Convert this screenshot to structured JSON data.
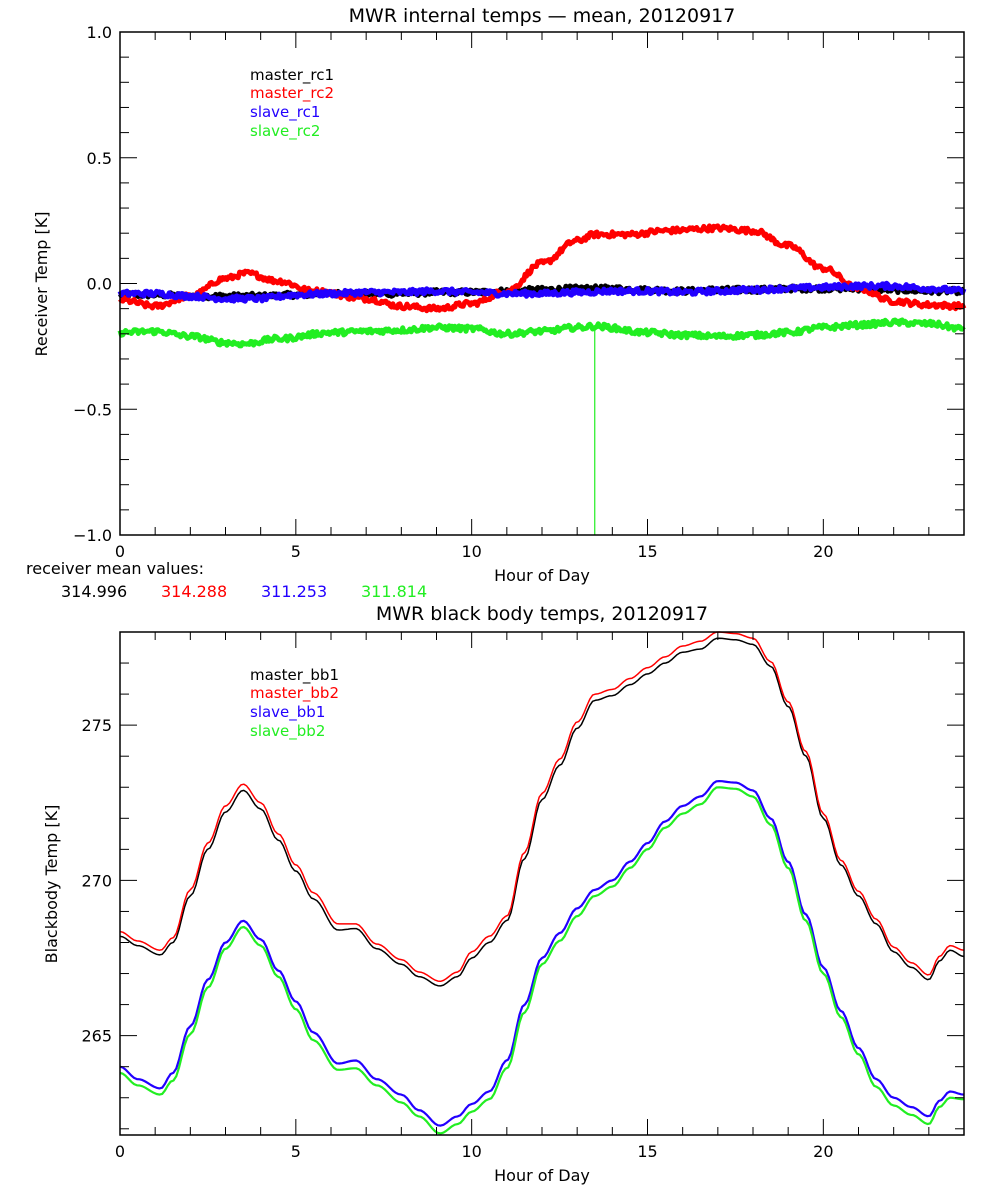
{
  "chart_data": [
    {
      "type": "line",
      "title": "MWR internal temps — mean, 20120917",
      "xlabel": "Hour of Day",
      "ylabel": "Receiver Temp [K]",
      "xlim": [
        0,
        24
      ],
      "ylim": [
        -1.0,
        1.0
      ],
      "xticks": [
        0,
        5,
        10,
        15,
        20
      ],
      "xtick_labels": [
        "0",
        "5",
        "10",
        "15",
        "20"
      ],
      "yticks": [
        -1.0,
        -0.5,
        0.0,
        0.5,
        1.0
      ],
      "ytick_labels": [
        "−1.0",
        "−0.5",
        "0.0",
        "0.5",
        "1.0"
      ],
      "grid": false,
      "legend_position": "upper-left-inside",
      "noisy": true,
      "series": [
        {
          "name": "master_rc1",
          "color": "#000000",
          "x": [
            0,
            1,
            2,
            3,
            4,
            5,
            6,
            7,
            8,
            9,
            10,
            11,
            12,
            13,
            14,
            15,
            16,
            17,
            18,
            19,
            20,
            21,
            22,
            23,
            24
          ],
          "y": [
            -0.045,
            -0.045,
            -0.05,
            -0.05,
            -0.05,
            -0.045,
            -0.04,
            -0.04,
            -0.04,
            -0.035,
            -0.035,
            -0.03,
            -0.025,
            -0.02,
            -0.02,
            -0.025,
            -0.03,
            -0.025,
            -0.025,
            -0.02,
            -0.02,
            -0.02,
            -0.025,
            -0.03,
            -0.03
          ],
          "spike": {
            "x": 13.5,
            "y": -0.02,
            "to": -0.05
          }
        },
        {
          "name": "master_rc2",
          "color": "#ff0000",
          "x": [
            0,
            1,
            2,
            3,
            3.6,
            4.5,
            5.5,
            7,
            8,
            9,
            10,
            11,
            12,
            13,
            13.5,
            14.5,
            15.5,
            17,
            18,
            19,
            20,
            21,
            22,
            23,
            24
          ],
          "y": [
            -0.065,
            -0.09,
            -0.05,
            0.02,
            0.04,
            0.01,
            -0.03,
            -0.06,
            -0.09,
            -0.1,
            -0.08,
            -0.03,
            0.08,
            0.17,
            0.195,
            0.195,
            0.21,
            0.22,
            0.21,
            0.15,
            0.06,
            -0.02,
            -0.07,
            -0.085,
            -0.09
          ]
        },
        {
          "name": "slave_rc1",
          "color": "#2200ff",
          "x": [
            0,
            1,
            2,
            3,
            4,
            5,
            6,
            7,
            8,
            9,
            10,
            11,
            12,
            13,
            14,
            15,
            16,
            17,
            18,
            19,
            20,
            21,
            22,
            23,
            24
          ],
          "y": [
            -0.04,
            -0.04,
            -0.05,
            -0.06,
            -0.06,
            -0.045,
            -0.04,
            -0.035,
            -0.035,
            -0.03,
            -0.035,
            -0.04,
            -0.04,
            -0.035,
            -0.03,
            -0.03,
            -0.035,
            -0.03,
            -0.025,
            -0.02,
            -0.015,
            -0.01,
            -0.01,
            -0.02,
            -0.03
          ]
        },
        {
          "name": "slave_rc2",
          "color": "#22ee22",
          "x": [
            0,
            1,
            2,
            3,
            3.5,
            4.5,
            6,
            7,
            8,
            9,
            10,
            11,
            12,
            13,
            13.5,
            15,
            16,
            17,
            18,
            19,
            20,
            21,
            22,
            23,
            24
          ],
          "y": [
            -0.195,
            -0.19,
            -0.21,
            -0.235,
            -0.24,
            -0.22,
            -0.195,
            -0.19,
            -0.185,
            -0.175,
            -0.18,
            -0.2,
            -0.19,
            -0.175,
            -0.17,
            -0.195,
            -0.205,
            -0.21,
            -0.205,
            -0.195,
            -0.175,
            -0.165,
            -0.155,
            -0.16,
            -0.18
          ],
          "spike": {
            "x": 13.5,
            "y": -0.17,
            "to": -1.0
          }
        }
      ],
      "annotation": {
        "label": "receiver mean values:",
        "values": [
          {
            "text": "314.996",
            "color": "#000000"
          },
          {
            "text": "314.288",
            "color": "#ff0000"
          },
          {
            "text": "311.253",
            "color": "#2200ff"
          },
          {
            "text": "311.814",
            "color": "#22ee22"
          }
        ]
      }
    },
    {
      "type": "line",
      "title": "MWR black body temps, 20120917",
      "xlabel": "Hour of Day",
      "ylabel": "Blackbody Temp [K]",
      "xlim": [
        0,
        24
      ],
      "ylim": [
        261.8,
        278.0
      ],
      "xticks": [
        0,
        5,
        10,
        15,
        20
      ],
      "xtick_labels": [
        "0",
        "5",
        "10",
        "15",
        "20"
      ],
      "yticks": [
        265,
        270,
        275
      ],
      "ytick_labels": [
        "265",
        "270",
        "275"
      ],
      "grid": false,
      "legend_position": "upper-left-inside",
      "series": [
        {
          "name": "master_bb1",
          "color": "#000000",
          "x": [
            0,
            0.5,
            1.15,
            1.5,
            2,
            2.5,
            3,
            3.5,
            4,
            4.5,
            5,
            5.5,
            6.2,
            6.7,
            7.3,
            8,
            8.5,
            9.1,
            9.6,
            10,
            10.5,
            11,
            11.5,
            12,
            12.5,
            13,
            13.5,
            14,
            14.5,
            15,
            15.5,
            16,
            16.5,
            17,
            17.5,
            18,
            18.5,
            19,
            19.5,
            20,
            20.5,
            21,
            21.5,
            22,
            22.5,
            23,
            23.3,
            23.6,
            24
          ],
          "y": [
            268.2,
            267.9,
            267.6,
            268.0,
            269.5,
            271.0,
            272.2,
            272.9,
            272.3,
            271.3,
            270.3,
            269.4,
            268.4,
            268.45,
            267.8,
            267.3,
            266.9,
            266.6,
            266.9,
            267.5,
            268.0,
            268.7,
            270.7,
            272.6,
            273.7,
            274.9,
            275.8,
            275.95,
            276.3,
            276.65,
            277.0,
            277.35,
            277.45,
            277.8,
            277.75,
            277.6,
            276.9,
            275.6,
            274.0,
            272.0,
            270.5,
            269.5,
            268.6,
            267.7,
            267.2,
            266.8,
            267.4,
            267.75,
            267.55
          ]
        },
        {
          "name": "master_bb2",
          "color": "#ff0000",
          "x": [
            0,
            0.5,
            1.15,
            1.5,
            2,
            2.5,
            3,
            3.5,
            4,
            4.5,
            5,
            5.5,
            6.2,
            6.7,
            7.3,
            8,
            8.5,
            9.1,
            9.6,
            10,
            10.5,
            11,
            11.5,
            12,
            12.5,
            13,
            13.5,
            14,
            14.5,
            15,
            15.5,
            16,
            16.5,
            17,
            17.5,
            18,
            18.5,
            19,
            19.5,
            20,
            20.5,
            21,
            21.5,
            22,
            22.5,
            23,
            23.3,
            23.6,
            24
          ],
          "y": [
            268.35,
            268.05,
            267.75,
            268.15,
            269.7,
            271.2,
            272.4,
            273.1,
            272.5,
            271.5,
            270.5,
            269.6,
            268.6,
            268.6,
            267.95,
            267.45,
            267.05,
            266.75,
            267.05,
            267.7,
            268.2,
            268.85,
            270.9,
            272.8,
            273.9,
            275.1,
            276.0,
            276.15,
            276.5,
            276.85,
            277.2,
            277.55,
            277.7,
            278.0,
            277.95,
            277.8,
            277.05,
            275.75,
            274.15,
            272.15,
            270.65,
            269.65,
            268.75,
            267.85,
            267.35,
            266.95,
            267.55,
            267.9,
            267.75
          ]
        },
        {
          "name": "slave_bb1",
          "color": "#2200ff",
          "x": [
            0,
            0.5,
            1.15,
            1.5,
            2,
            2.5,
            3,
            3.5,
            4,
            4.5,
            5,
            5.5,
            6.2,
            6.7,
            7.3,
            8,
            8.5,
            9.1,
            9.6,
            10,
            10.5,
            11,
            11.5,
            12,
            12.5,
            13,
            13.5,
            14,
            14.5,
            15,
            15.5,
            16,
            16.5,
            17,
            17.5,
            18,
            18.5,
            19,
            19.5,
            20,
            20.5,
            21,
            21.5,
            22,
            22.5,
            23,
            23.3,
            23.6,
            24
          ],
          "y": [
            264.0,
            263.6,
            263.3,
            263.8,
            265.3,
            266.8,
            268.0,
            268.7,
            268.1,
            267.1,
            266.1,
            265.1,
            264.1,
            264.2,
            263.6,
            263.1,
            262.6,
            262.1,
            262.4,
            262.8,
            263.2,
            264.2,
            266.0,
            267.5,
            268.3,
            269.1,
            269.7,
            270.0,
            270.6,
            271.2,
            271.9,
            272.4,
            272.7,
            273.2,
            273.15,
            272.9,
            272.0,
            270.6,
            268.9,
            267.2,
            265.8,
            264.6,
            263.6,
            263.0,
            262.7,
            262.4,
            262.9,
            263.2,
            263.1
          ]
        },
        {
          "name": "slave_bb2",
          "color": "#22ee22",
          "x": [
            0,
            0.5,
            1.15,
            1.5,
            2,
            2.5,
            3,
            3.5,
            4,
            4.5,
            5,
            5.5,
            6.2,
            6.7,
            7.3,
            8,
            8.5,
            9.1,
            9.6,
            10,
            10.5,
            11,
            11.5,
            12,
            12.5,
            13,
            13.5,
            14,
            14.5,
            15,
            15.5,
            16,
            16.5,
            17,
            17.5,
            18,
            18.5,
            19,
            19.5,
            20,
            20.5,
            21,
            21.5,
            22,
            22.5,
            23,
            23.3,
            23.6,
            24
          ],
          "y": [
            263.8,
            263.4,
            263.1,
            263.55,
            265.05,
            266.55,
            267.8,
            268.5,
            267.9,
            266.9,
            265.85,
            264.85,
            263.9,
            263.95,
            263.4,
            262.85,
            262.4,
            261.85,
            262.15,
            262.55,
            262.95,
            263.95,
            265.75,
            267.3,
            268.05,
            268.85,
            269.5,
            269.8,
            270.4,
            271.0,
            271.7,
            272.15,
            272.45,
            273.0,
            272.95,
            272.7,
            271.8,
            270.4,
            268.7,
            267.0,
            265.6,
            264.4,
            263.35,
            262.75,
            262.45,
            262.15,
            262.7,
            263.0,
            262.95
          ]
        }
      ]
    }
  ]
}
